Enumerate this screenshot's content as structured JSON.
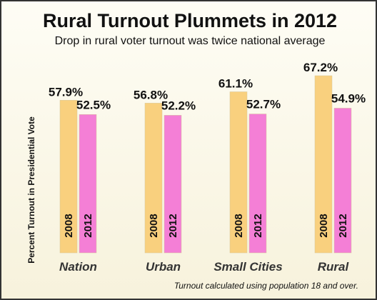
{
  "chart_data": {
    "type": "bar",
    "title": "Rural Turnout Plummets in 2012",
    "subtitle": "Drop in rural voter turnout was twice national average",
    "ylabel": "Percent Turnout in Presidential Vote",
    "note": "Turnout calculated using population 18 and over.",
    "categories": [
      "Nation",
      "Urban",
      "Small Cities",
      "Rural"
    ],
    "series": [
      {
        "name": "2008",
        "color": "#f9d07e",
        "values": [
          57.9,
          56.8,
          61.1,
          67.2
        ],
        "labels": [
          "57.9%",
          "56.8%",
          "61.1%",
          "67.2%"
        ]
      },
      {
        "name": "2012",
        "color": "#f47fd6",
        "values": [
          52.5,
          52.2,
          52.7,
          54.9
        ],
        "labels": [
          "52.5%",
          "52.2%",
          "52.7%",
          "54.9%"
        ]
      }
    ],
    "ylim": [
      0,
      67.2
    ],
    "grid": false,
    "legend": "none"
  }
}
